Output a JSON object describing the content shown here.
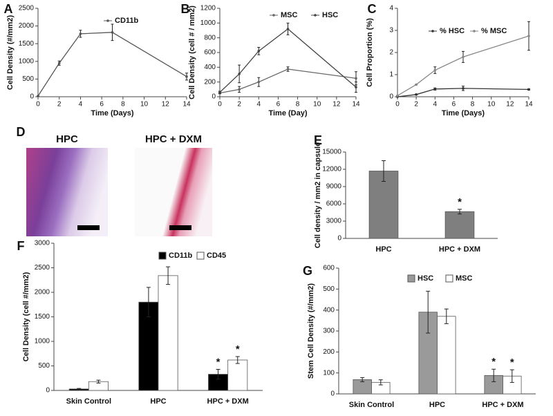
{
  "chart_data": [
    {
      "type": "line",
      "panel": "A",
      "xlabel": "Time (Days)",
      "ylabel": "Cell Density (#/mm2)",
      "x": [
        0,
        2,
        4,
        7,
        14
      ],
      "xlim": [
        0,
        14
      ],
      "xticks": [
        0,
        2,
        4,
        6,
        8,
        10,
        12,
        14
      ],
      "ylim": [
        0,
        2500
      ],
      "yticks": [
        0,
        500,
        1000,
        1500,
        2000,
        2500
      ],
      "series": [
        {
          "name": "CD11b",
          "color": "#555555",
          "values": [
            20,
            950,
            1780,
            1820,
            570
          ],
          "errors": [
            0,
            60,
            100,
            230,
            100
          ]
        }
      ]
    },
    {
      "type": "line",
      "panel": "B",
      "xlabel": "Time (Day)",
      "ylabel": "Cell Density (cell # / mm2)",
      "x": [
        0,
        2,
        4,
        7,
        14
      ],
      "xlim": [
        0,
        14
      ],
      "xticks": [
        0,
        2,
        4,
        6,
        8,
        10,
        12,
        14
      ],
      "ylim": [
        0,
        1200
      ],
      "yticks": [
        0,
        200,
        400,
        600,
        800,
        1000,
        1200
      ],
      "series": [
        {
          "name": "MSC",
          "color": "#666666",
          "values": [
            50,
            100,
            200,
            375,
            250
          ],
          "errors": [
            10,
            40,
            60,
            30,
            90
          ]
        },
        {
          "name": "HSC",
          "color": "#444444",
          "values": [
            60,
            310,
            620,
            920,
            130
          ],
          "errors": [
            15,
            120,
            50,
            80,
            70
          ]
        }
      ]
    },
    {
      "type": "line",
      "panel": "C",
      "xlabel": "Time (Days)",
      "ylabel": "Cell Proportion (%)",
      "x": [
        0,
        2,
        4,
        7,
        14
      ],
      "xlim": [
        0,
        14
      ],
      "xticks": [
        0,
        2,
        4,
        6,
        8,
        10,
        12,
        14
      ],
      "ylim": [
        0,
        4
      ],
      "yticks": [
        0,
        1,
        2,
        3,
        4
      ],
      "series": [
        {
          "name": "% HSC",
          "color": "#333333",
          "values": [
            0,
            0.1,
            0.35,
            0.38,
            0.33
          ],
          "errors": [
            0,
            0.02,
            0.05,
            0.1,
            0.03
          ]
        },
        {
          "name": "% MSC",
          "color": "#888888",
          "values": [
            0.05,
            0.55,
            1.2,
            1.8,
            2.75
          ],
          "errors": [
            0,
            0,
            0.15,
            0.25,
            0.65
          ]
        }
      ]
    },
    {
      "type": "image",
      "panel": "D",
      "labels": [
        "HPC",
        "HPC + DXM"
      ]
    },
    {
      "type": "bar",
      "panel": "E",
      "ylabel": "Cell density / mm2 in capsule",
      "categories": [
        "HPC",
        "HPC + DXM"
      ],
      "ylim": [
        0,
        15000
      ],
      "yticks": [
        0,
        3000,
        6000,
        9000,
        12000,
        15000
      ],
      "series": [
        {
          "color": "#7f7f7f",
          "values": [
            11700,
            4650
          ],
          "errors": [
            1800,
            400
          ],
          "markers": [
            null,
            "*"
          ]
        }
      ]
    },
    {
      "type": "bar",
      "panel": "F",
      "ylabel": "Cell Density (cell #/mm2)",
      "categories": [
        "Skin Control",
        "HPC",
        "HPC + DXM"
      ],
      "ylim": [
        0,
        3000
      ],
      "yticks": [
        0,
        500,
        1000,
        1500,
        2000,
        2500,
        3000
      ],
      "series": [
        {
          "name": "CD11b",
          "color": "#000000",
          "values": [
            30,
            1800,
            330
          ],
          "errors": [
            10,
            300,
            100
          ],
          "markers": [
            null,
            null,
            "*"
          ]
        },
        {
          "name": "CD45",
          "color": "#ffffff",
          "values": [
            180,
            2340,
            620
          ],
          "errors": [
            30,
            180,
            70
          ],
          "markers": [
            null,
            null,
            "*"
          ]
        }
      ]
    },
    {
      "type": "bar",
      "panel": "G",
      "ylabel": "Stem Cell Density (#/mm2)",
      "categories": [
        "Skin Control",
        "HPC",
        "HPC + DXM"
      ],
      "ylim": [
        0,
        600
      ],
      "yticks": [
        0,
        100,
        200,
        300,
        400,
        500,
        600
      ],
      "series": [
        {
          "name": "HSC",
          "color": "#9a9a9a",
          "values": [
            68,
            390,
            88
          ],
          "errors": [
            10,
            100,
            30
          ],
          "markers": [
            null,
            null,
            "*"
          ]
        },
        {
          "name": "MSC",
          "color": "#ffffff",
          "values": [
            55,
            370,
            85
          ],
          "errors": [
            12,
            35,
            30
          ],
          "markers": [
            null,
            null,
            "*"
          ]
        }
      ]
    }
  ]
}
